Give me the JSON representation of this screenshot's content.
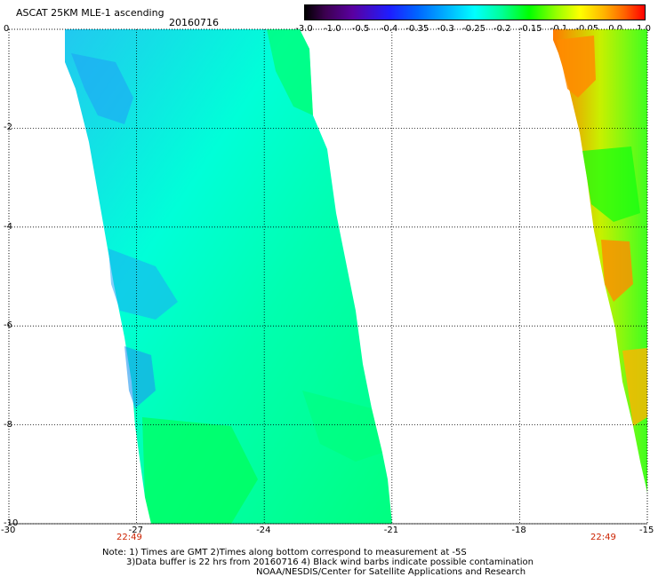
{
  "header": {
    "product": "ASCAT 25KM MLE-1 ascending",
    "date": "20160716"
  },
  "colorbar": {
    "labels": [
      "-3.0",
      "-1.0",
      "-0.5",
      "-0.4",
      "-0.35",
      "-0.3",
      "-0.25",
      "-0.2",
      "-0.15",
      "-0.1",
      "-0.05",
      "0.0",
      "1.0"
    ],
    "colors": [
      "#000000",
      "#5a00a0",
      "#0000ff",
      "#0064ff",
      "#00b4ff",
      "#00ffff",
      "#00ff96",
      "#00ff00",
      "#96ff00",
      "#ffff00",
      "#ffb400",
      "#ff6400",
      "#ff0000"
    ]
  },
  "axes": {
    "x_ticks": [
      "-30",
      "-27",
      "-24",
      "-21",
      "-18",
      "-15"
    ],
    "y_ticks": [
      "0",
      "-2",
      "-4",
      "-6",
      "-8",
      "-10"
    ],
    "x_range": [
      -30,
      -15
    ],
    "y_range": [
      0,
      -10
    ],
    "grid": "dotted"
  },
  "pass_times": [
    "22:49",
    "22:49"
  ],
  "notes": {
    "line1": "Note: 1) Times are GMT 2)Times along bottom correspond to measurement at -5S",
    "line2": "3)Data buffer is 22 hrs from 20160716 4) Black wind barbs indicate possible contamination",
    "line3": "NOAA/NESDIS/Center for Satellite Applications and Research"
  }
}
